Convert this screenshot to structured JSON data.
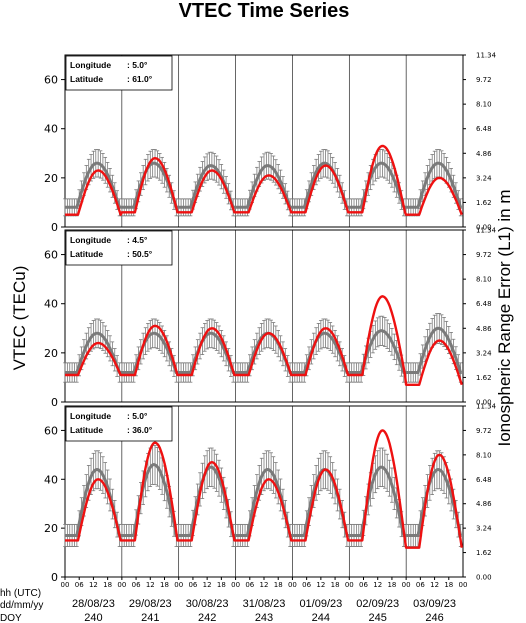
{
  "chart_data": {
    "type": "line",
    "title": "VTEC Time Series",
    "ylabel": "VTEC (TECu)",
    "ylabel_right": "Ionospheric Range Error (L1) in m",
    "ylim": [
      0,
      70
    ],
    "yticks": [
      0,
      20,
      40,
      60
    ],
    "y2ticks": [
      "0.00",
      "1.62",
      "3.24",
      "4.86",
      "6.48",
      "8.10",
      "9.72",
      "11.34"
    ],
    "x_hour_ticks": [
      "00",
      "06",
      "12",
      "18"
    ],
    "row_labels": [
      "hh (UTC)",
      "dd/mm/yy",
      "DOY"
    ],
    "dates": [
      "28/08/23",
      "29/08/23",
      "30/08/23",
      "31/08/23",
      "01/09/23",
      "02/09/23",
      "03/09/23"
    ],
    "doy": [
      "240",
      "241",
      "242",
      "243",
      "244",
      "245",
      "246"
    ],
    "grid": false,
    "series_colors": {
      "measured": "#ee1111",
      "reference": "#7a7a7a"
    },
    "panels": [
      {
        "lon_label": "Longitude",
        "lon_value": ":   5.0°",
        "lat_label": "Latitude",
        "lat_value": ":  61.0°",
        "measured_peak": [
          23,
          28,
          23,
          21,
          25,
          33,
          20
        ],
        "measured_night": [
          5,
          6,
          6,
          6,
          6,
          6,
          5
        ],
        "reference_peak": [
          26,
          26,
          25,
          25,
          26,
          26,
          26
        ],
        "reference_night": [
          8,
          8,
          8,
          8,
          8,
          8,
          8
        ]
      },
      {
        "lon_label": "Longitude",
        "lon_value": ":   4.5°",
        "lat_label": "Latitude",
        "lat_value": ":  50.5°",
        "measured_peak": [
          24,
          31,
          30,
          28,
          30,
          43,
          25
        ],
        "measured_night": [
          11,
          11,
          11,
          11,
          11,
          11,
          7
        ],
        "reference_peak": [
          28,
          28,
          28,
          28,
          28,
          29,
          30
        ],
        "reference_night": [
          12,
          12,
          12,
          12,
          12,
          12,
          12
        ]
      },
      {
        "lon_label": "Longitude",
        "lon_value": ":   5.0°",
        "lat_label": "Latitude",
        "lat_value": ":  36.0°",
        "measured_peak": [
          40,
          55,
          47,
          40,
          44,
          60,
          50
        ],
        "measured_night": [
          15,
          15,
          15,
          15,
          15,
          15,
          12
        ],
        "reference_peak": [
          44,
          46,
          45,
          44,
          44,
          45,
          44
        ],
        "reference_night": [
          17,
          17,
          17,
          17,
          17,
          17,
          17
        ]
      }
    ]
  }
}
